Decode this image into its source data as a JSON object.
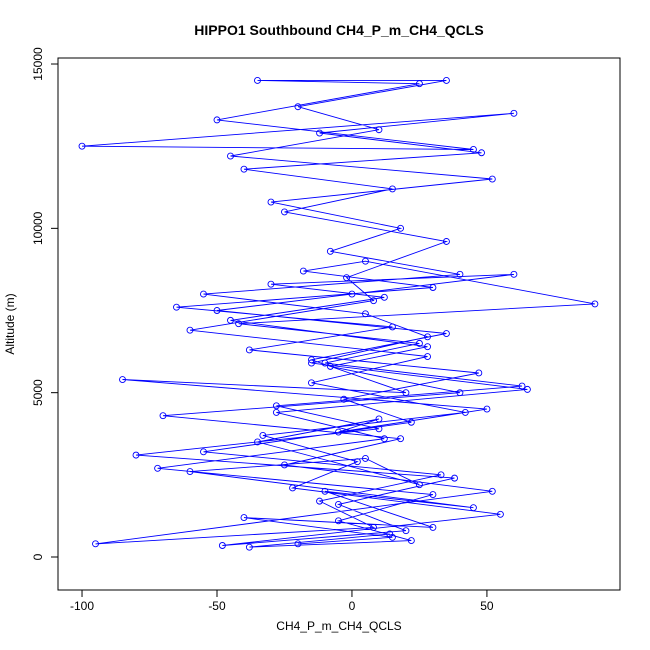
{
  "chart_data": {
    "type": "line",
    "markers": true,
    "title": "HIPPO1 Southbound CH4_P_m_CH4_QCLS",
    "xlabel": "CH4_P_m_CH4_QCLS",
    "ylabel": "Altitude (m)",
    "color": "#0000ff",
    "xlim": [
      -108.9,
      99.3
    ],
    "ylim": [
      -1004,
      15183
    ],
    "xticks": [
      -100,
      -50,
      0,
      50
    ],
    "yticks": [
      0,
      5000,
      10000,
      15000
    ],
    "x": [
      -20,
      15,
      -40,
      30,
      -10,
      45,
      -60,
      5,
      25,
      -35,
      10,
      -5,
      50,
      -85,
      20,
      -15,
      35,
      -50,
      0,
      60,
      -30,
      12,
      -45,
      28,
      -8,
      40,
      -70,
      18,
      -25,
      52,
      -95,
      8,
      -12,
      33,
      -55,
      22,
      -3,
      47,
      -38,
      15,
      -65,
      30,
      -18,
      5,
      90,
      -42,
      25,
      -10,
      63,
      -28,
      10,
      -80,
      38,
      -5,
      20,
      -48,
      55,
      -22,
      2,
      -33,
      42,
      -15,
      28,
      -60,
      8,
      -2,
      35,
      -25,
      15,
      -40,
      48,
      -12,
      60,
      -100,
      45,
      -50,
      25,
      -35,
      35,
      -20,
      10,
      -45,
      52,
      -30,
      18,
      -8,
      40,
      -55,
      5,
      28,
      -15,
      65,
      -28,
      12,
      -72,
      30,
      -5,
      22,
      -38,
      14
    ],
    "values": [
      400,
      600,
      1200,
      900,
      2000,
      1500,
      2600,
      3000,
      2200,
      3500,
      4200,
      3800,
      4500,
      5400,
      5000,
      6000,
      6800,
      7500,
      8000,
      8600,
      8300,
      7900,
      7200,
      6400,
      5800,
      5000,
      4300,
      3600,
      2800,
      2000,
      400,
      900,
      1700,
      2500,
      3200,
      4100,
      4800,
      5600,
      6300,
      7000,
      7600,
      8200,
      8700,
      9000,
      7700,
      7100,
      6500,
      5900,
      5200,
      4600,
      3900,
      3100,
      2400,
      1600,
      800,
      350,
      1300,
      2100,
      2900,
      3700,
      4400,
      5300,
      6100,
      6900,
      7800,
      8500,
      9600,
      10500,
      11200,
      11800,
      12300,
      12900,
      13500,
      12500,
      12400,
      13300,
      14400,
      14500,
      14500,
      13700,
      13000,
      12200,
      11500,
      10800,
      10000,
      9300,
      8600,
      8000,
      7400,
      6700,
      5900,
      5100,
      4400,
      3600,
      2700,
      1900,
      1100,
      500,
      300,
      700
    ]
  }
}
